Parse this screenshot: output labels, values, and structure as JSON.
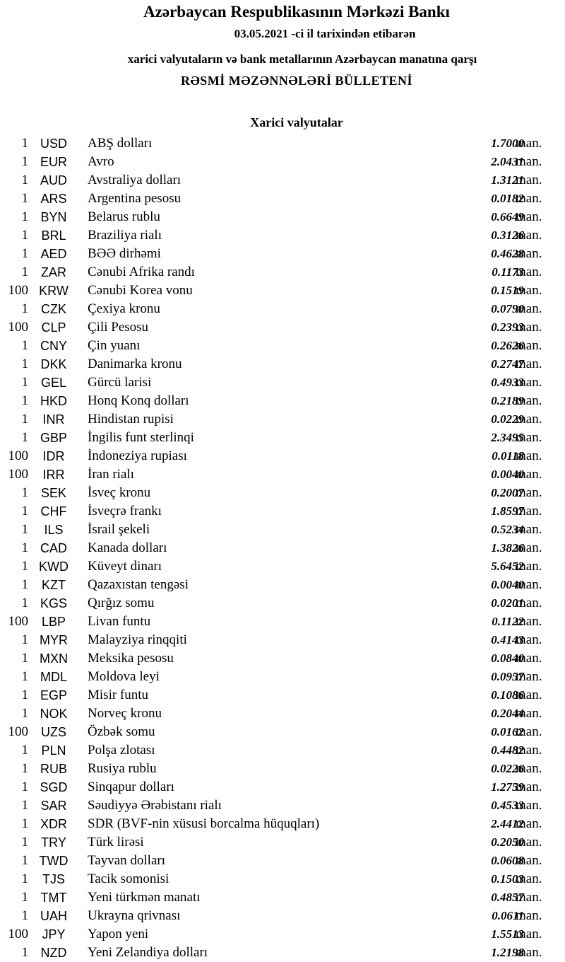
{
  "header": {
    "bank": "Azərbaycan Respublikasının Mərkəzi Bankı",
    "date_line": "03.05.2021 -ci il tarixindən etibarən",
    "subtitle": "xarici valyutaların və bank metallarının Azərbaycan manatına qarşı",
    "title": "RƏSMİ MƏZƏNNƏLƏRİ BÜLLETENİ"
  },
  "section": "Xarici valyutalar",
  "unit": "man.",
  "rows": [
    {
      "qty": "1",
      "code": "USD",
      "name": "ABŞ dolları",
      "rate": "1.7000"
    },
    {
      "qty": "1",
      "code": "EUR",
      "name": "Avro",
      "rate": "2.0431"
    },
    {
      "qty": "1",
      "code": "AUD",
      "name": "Avstraliya dolları",
      "rate": "1.3121"
    },
    {
      "qty": "1",
      "code": "ARS",
      "name": "Argentina pesosu",
      "rate": "0.0182"
    },
    {
      "qty": "1",
      "code": "BYN",
      "name": "Belarus rublu",
      "rate": "0.6649"
    },
    {
      "qty": "1",
      "code": "BRL",
      "name": "Braziliya rialı",
      "rate": "0.3126"
    },
    {
      "qty": "1",
      "code": "AED",
      "name": "BƏƏ dirhəmi",
      "rate": "0.4628"
    },
    {
      "qty": "1",
      "code": "ZAR",
      "name": "Cənubi Afrika randı",
      "rate": "0.1173"
    },
    {
      "qty": "100",
      "code": "KRW",
      "name": "Cənubi Korea vonu",
      "rate": "0.1519"
    },
    {
      "qty": "1",
      "code": "CZK",
      "name": "Çexiya kronu",
      "rate": "0.0790"
    },
    {
      "qty": "100",
      "code": "CLP",
      "name": "Çili Pesosu",
      "rate": "0.2393"
    },
    {
      "qty": "1",
      "code": "CNY",
      "name": "Çin yuanı",
      "rate": "0.2626"
    },
    {
      "qty": "1",
      "code": "DKK",
      "name": "Danimarka kronu",
      "rate": "0.2747"
    },
    {
      "qty": "1",
      "code": "GEL",
      "name": "Gürcü larisi",
      "rate": "0.4933"
    },
    {
      "qty": "1",
      "code": "HKD",
      "name": "Honq Konq dolları",
      "rate": "0.2189"
    },
    {
      "qty": "1",
      "code": "INR",
      "name": "Hindistan rupisi",
      "rate": "0.0229"
    },
    {
      "qty": "1",
      "code": "GBP",
      "name": "İngilis funt sterlinqi",
      "rate": "2.3495"
    },
    {
      "qty": "100",
      "code": "IDR",
      "name": "İndoneziya rupiası",
      "rate": "0.0118"
    },
    {
      "qty": "100",
      "code": "IRR",
      "name": "İran rialı",
      "rate": "0.0040"
    },
    {
      "qty": "1",
      "code": "SEK",
      "name": "İsveç kronu",
      "rate": "0.2007"
    },
    {
      "qty": "1",
      "code": "CHF",
      "name": "İsveçrə frankı",
      "rate": "1.8597"
    },
    {
      "qty": "1",
      "code": "ILS",
      "name": "İsrail şekeli",
      "rate": "0.5234"
    },
    {
      "qty": "1",
      "code": "CAD",
      "name": "Kanada dolları",
      "rate": "1.3826"
    },
    {
      "qty": "1",
      "code": "KWD",
      "name": "Küveyt dinarı",
      "rate": "5.6452"
    },
    {
      "qty": "1",
      "code": "KZT",
      "name": "Qazaxıstan tengəsi",
      "rate": "0.0040"
    },
    {
      "qty": "1",
      "code": "KGS",
      "name": "Qırğız somu",
      "rate": "0.0201"
    },
    {
      "qty": "100",
      "code": "LBP",
      "name": "Livan funtu",
      "rate": "0.1122"
    },
    {
      "qty": "1",
      "code": "MYR",
      "name": "Malayziya rinqqiti",
      "rate": "0.4143"
    },
    {
      "qty": "1",
      "code": "MXN",
      "name": "Meksika pesosu",
      "rate": "0.0840"
    },
    {
      "qty": "1",
      "code": "MDL",
      "name": "Moldova leyi",
      "rate": "0.0957"
    },
    {
      "qty": "1",
      "code": "EGP",
      "name": "Misir funtu",
      "rate": "0.1086"
    },
    {
      "qty": "1",
      "code": "NOK",
      "name": "Norveç kronu",
      "rate": "0.2044"
    },
    {
      "qty": "100",
      "code": "UZS",
      "name": "Özbək somu",
      "rate": "0.0162"
    },
    {
      "qty": "1",
      "code": "PLN",
      "name": "Polşa zlotası",
      "rate": "0.4482"
    },
    {
      "qty": "1",
      "code": "RUB",
      "name": "Rusiya rublu",
      "rate": "0.0226"
    },
    {
      "qty": "1",
      "code": "SGD",
      "name": "Sinqapur dolları",
      "rate": "1.2759"
    },
    {
      "qty": "1",
      "code": "SAR",
      "name": "Səudiyyə Ərəbistanı rialı",
      "rate": "0.4533"
    },
    {
      "qty": "1",
      "code": "XDR",
      "name": "SDR (BVF-nin xüsusi borcalma hüquqları)",
      "rate": "2.4412"
    },
    {
      "qty": "1",
      "code": "TRY",
      "name": "Türk lirəsi",
      "rate": "0.2050"
    },
    {
      "qty": "1",
      "code": "TWD",
      "name": "Tayvan dolları",
      "rate": "0.0608"
    },
    {
      "qty": "1",
      "code": "TJS",
      "name": "Tacik somonisi",
      "rate": "0.1503"
    },
    {
      "qty": "1",
      "code": "TMT",
      "name": "Yeni türkmən manatı",
      "rate": "0.4857"
    },
    {
      "qty": "1",
      "code": "UAH",
      "name": "Ukrayna qrivnası",
      "rate": "0.0611"
    },
    {
      "qty": "100",
      "code": "JPY",
      "name": "Yapon yeni",
      "rate": "1.5513"
    },
    {
      "qty": "1",
      "code": "NZD",
      "name": "Yeni Zelandiya dolları",
      "rate": "1.2198"
    }
  ]
}
